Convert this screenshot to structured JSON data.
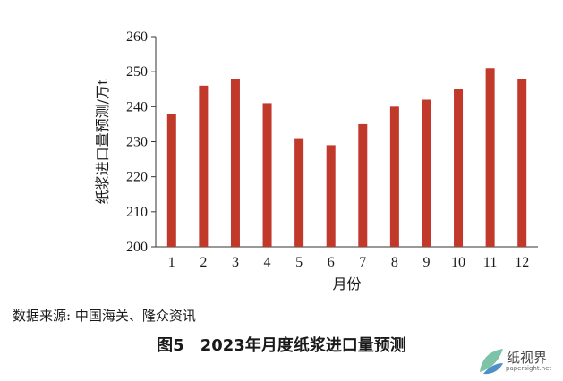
{
  "chart_data": {
    "type": "bar",
    "categories": [
      "1",
      "2",
      "3",
      "4",
      "5",
      "6",
      "7",
      "8",
      "9",
      "10",
      "11",
      "12"
    ],
    "values": [
      238,
      246,
      248,
      241,
      231,
      229,
      235,
      240,
      242,
      245,
      251,
      248
    ],
    "xlabel": "月份",
    "ylabel": "纸浆进口量预测/万t",
    "ylim": [
      200,
      260
    ],
    "yticks": [
      200,
      210,
      220,
      230,
      240,
      250,
      260
    ],
    "grid": false,
    "bar_color": "#c0392b"
  },
  "source_note": "数据来源: 中国海关、隆众资讯",
  "caption": {
    "number": "图5",
    "text": "2023年月度纸浆进口量预测"
  },
  "watermark": {
    "name": "纸视界",
    "url": "papersight.net"
  },
  "colors": {
    "text": "#1a1a1a",
    "axis": "#333333",
    "logo_green": "#7cc3a8",
    "logo_blue": "#4d8fc6"
  }
}
